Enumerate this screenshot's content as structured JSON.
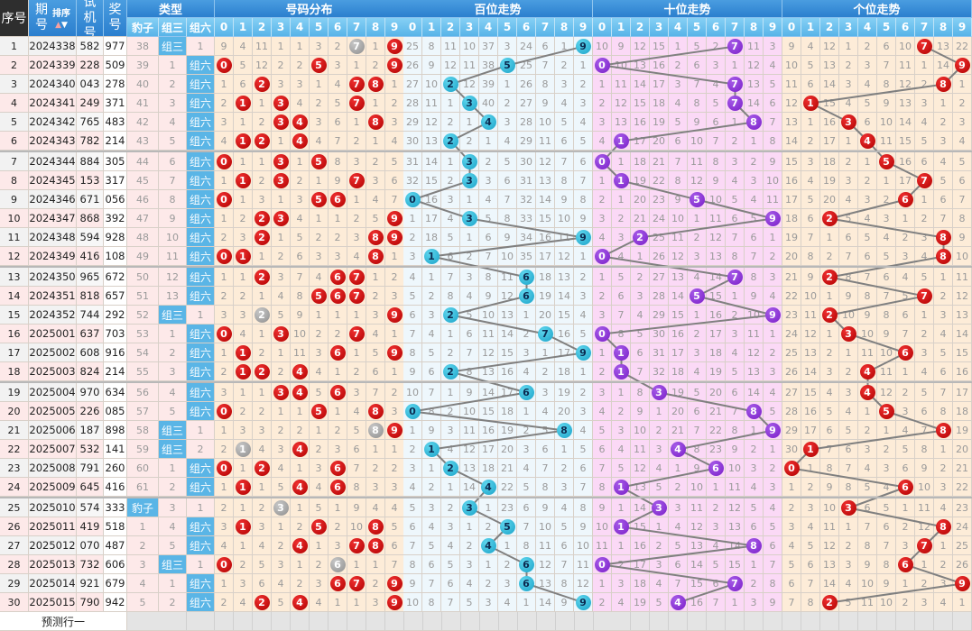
{
  "header": {
    "seq": "序号",
    "period": "期号",
    "sort": "排序",
    "sort_up_icon": "▲",
    "sort_down_icon": "▼",
    "trial": "试机号",
    "prize": "奖号",
    "type": "类型",
    "type_cols": [
      "豹子",
      "组三",
      "组六"
    ],
    "distribution": "号码分布",
    "hundreds": "百位走势",
    "tens": "十位走势",
    "units": "个位走势",
    "digits": [
      "0",
      "1",
      "2",
      "3",
      "4",
      "5",
      "6",
      "7",
      "8",
      "9"
    ]
  },
  "rows": [
    {
      "seq": "1",
      "period": "2024338",
      "trial": "582",
      "prize": "977",
      "type": "组三"
    },
    {
      "seq": "2",
      "period": "2024339",
      "trial": "228",
      "prize": "509",
      "type": "组六"
    },
    {
      "seq": "3",
      "period": "2024340",
      "trial": "043",
      "prize": "278",
      "type": "组六"
    },
    {
      "seq": "4",
      "period": "2024341",
      "trial": "249",
      "prize": "371",
      "type": "组六"
    },
    {
      "seq": "5",
      "period": "2024342",
      "trial": "765",
      "prize": "483",
      "type": "组六"
    },
    {
      "seq": "6",
      "period": "2024343",
      "trial": "782",
      "prize": "214",
      "type": "组六"
    },
    {
      "seq": "7",
      "period": "2024344",
      "trial": "884",
      "prize": "305",
      "type": "组六"
    },
    {
      "seq": "8",
      "period": "2024345",
      "trial": "153",
      "prize": "317",
      "type": "组六"
    },
    {
      "seq": "9",
      "period": "2024346",
      "trial": "671",
      "prize": "056",
      "type": "组六"
    },
    {
      "seq": "10",
      "period": "2024347",
      "trial": "868",
      "prize": "392",
      "type": "组六"
    },
    {
      "seq": "11",
      "period": "2024348",
      "trial": "594",
      "prize": "928",
      "type": "组六"
    },
    {
      "seq": "12",
      "period": "2024349",
      "trial": "416",
      "prize": "108",
      "type": "组六"
    },
    {
      "seq": "13",
      "period": "2024350",
      "trial": "965",
      "prize": "672",
      "type": "组六"
    },
    {
      "seq": "14",
      "period": "2024351",
      "trial": "818",
      "prize": "657",
      "type": "组六"
    },
    {
      "seq": "15",
      "period": "2024352",
      "trial": "744",
      "prize": "292",
      "type": "组三"
    },
    {
      "seq": "16",
      "period": "2025001",
      "trial": "637",
      "prize": "703",
      "type": "组六"
    },
    {
      "seq": "17",
      "period": "2025002",
      "trial": "608",
      "prize": "916",
      "type": "组六"
    },
    {
      "seq": "18",
      "period": "2025003",
      "trial": "824",
      "prize": "214",
      "type": "组六"
    },
    {
      "seq": "19",
      "period": "2025004",
      "trial": "970",
      "prize": "634",
      "type": "组六"
    },
    {
      "seq": "20",
      "period": "2025005",
      "trial": "226",
      "prize": "085",
      "type": "组六"
    },
    {
      "seq": "21",
      "period": "2025006",
      "trial": "187",
      "prize": "898",
      "type": "组三"
    },
    {
      "seq": "22",
      "period": "2025007",
      "trial": "532",
      "prize": "141",
      "type": "组三"
    },
    {
      "seq": "23",
      "period": "2025008",
      "trial": "791",
      "prize": "260",
      "type": "组六"
    },
    {
      "seq": "24",
      "period": "2025009",
      "trial": "645",
      "prize": "416",
      "type": "组六"
    },
    {
      "seq": "25",
      "period": "2025010",
      "trial": "574",
      "prize": "333",
      "type": "豹子"
    },
    {
      "seq": "26",
      "period": "2025011",
      "trial": "419",
      "prize": "518",
      "type": "组六"
    },
    {
      "seq": "27",
      "period": "2025012",
      "trial": "070",
      "prize": "487",
      "type": "组六"
    },
    {
      "seq": "28",
      "period": "2025013",
      "trial": "732",
      "prize": "606",
      "type": "组三"
    },
    {
      "seq": "29",
      "period": "2025014",
      "trial": "921",
      "prize": "679",
      "type": "组六"
    },
    {
      "seq": "30",
      "period": "2025015",
      "trial": "790",
      "prize": "942",
      "type": "组六"
    }
  ],
  "first_row_omission": {
    "type": [
      38,
      null,
      1
    ],
    "distribution": [
      9,
      4,
      11,
      1,
      1,
      3,
      2,
      null,
      1,
      null
    ],
    "hundreds": [
      25,
      8,
      11,
      10,
      37,
      3,
      24,
      6,
      1,
      null
    ],
    "tens": [
      10,
      9,
      12,
      15,
      1,
      5,
      2,
      null,
      11,
      3
    ],
    "units": [
      9,
      4,
      12,
      1,
      2,
      6,
      10,
      null,
      13,
      22
    ]
  },
  "footer": {
    "predict_row": "预测行一"
  },
  "colors": {
    "type_bg": "#fde9e9",
    "type_hit": "#5ab5e6",
    "distribution_bg": "#fdecd8",
    "hundreds_bg": "#eef7fc",
    "tens_bg": "#fbd9f6",
    "units_bg": "#fdecd8",
    "distribution_ball": "#c00000",
    "duplicate_ball": "#9a9a9a",
    "hundreds_ball": "#1aa3c8",
    "tens_ball": "#7a1fc8",
    "units_ball": "#c00000",
    "trend_line": "#808080"
  }
}
